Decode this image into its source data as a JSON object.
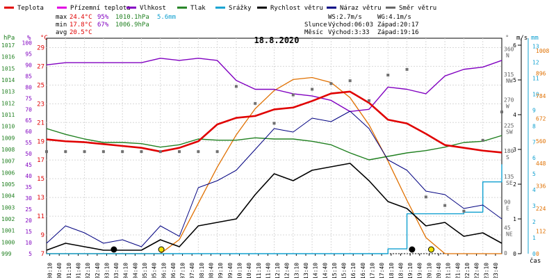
{
  "chart_data": {
    "type": "line",
    "title": "18.8.2020",
    "legend": [
      {
        "name": "Teplota",
        "color": "#e00000"
      },
      {
        "name": "Přízemní teplota",
        "color": "#e000e0"
      },
      {
        "name": "Vlhkost",
        "color": "#8000c0"
      },
      {
        "name": "Tlak",
        "color": "#208020"
      },
      {
        "name": "Srážky",
        "color": "#10a0d0"
      },
      {
        "name": "Rychlost větru",
        "color": "#000000"
      },
      {
        "name": "Náraz větru",
        "color": "#000080"
      },
      {
        "name": "Směr větru",
        "color": "#606060"
      }
    ],
    "stats": {
      "max_label": "max",
      "min_label": "min",
      "avg_label": "avg",
      "max_temp": "24.4°C",
      "max_hum": "95%",
      "max_press": "1010.1hPa",
      "max_rain": "5.6mm",
      "min_temp": "17.8°C",
      "min_hum": "67%",
      "min_press": "1006.9hPa",
      "avg_temp": "20.5°C",
      "ws": "WS:2.7m/s",
      "wg": "WG:4.1m/s",
      "sun_label": "Slunce",
      "sunrise": "Východ:06:03",
      "sunset": "Západ:20:17",
      "moon_label": "Měsíc",
      "moonrise": "Východ:3:33",
      "moonset": "Západ:19:16"
    },
    "axes": {
      "hpa_label": "hPa",
      "pct_label": "%",
      "degc_label": "°C",
      "deg_label": "°",
      "ms_label": "m/s",
      "mm_label": "mm",
      "x_label": "čas",
      "hpa_ticks": [
        1017,
        1016,
        1015,
        1014,
        1013,
        1012,
        1011,
        1010,
        1009,
        1008,
        1007,
        1006,
        1005,
        1004,
        1003,
        1002,
        1001,
        1000,
        999
      ],
      "pct_ticks": [
        100,
        95,
        90,
        85,
        80,
        75,
        70,
        65,
        60,
        55,
        50,
        45,
        40,
        35,
        30,
        25,
        20,
        15,
        10,
        5
      ],
      "c_ticks": [
        29,
        27,
        25,
        23,
        21,
        19,
        17,
        15,
        13,
        11,
        9,
        7
      ],
      "dir_ticks": [
        "360",
        "N",
        "315",
        "NW",
        "270",
        "W",
        "225",
        "SW",
        "180",
        "S",
        "135",
        "SE",
        "90",
        "E",
        "45",
        "NE",
        "0"
      ],
      "ms_ticks": [
        6,
        5,
        4,
        3,
        2,
        1,
        0
      ],
      "mm_ticks": [
        13,
        12,
        11,
        10,
        9,
        8,
        7,
        6,
        5,
        4,
        3,
        2,
        1,
        0
      ],
      "rad_ticks": [
        1008,
        896,
        784,
        672,
        560,
        448,
        336,
        224,
        112,
        0
      ],
      "x_ticks": [
        "00:10",
        "00:40",
        "01:10",
        "01:40",
        "02:10",
        "02:40",
        "03:10",
        "03:40",
        "04:10",
        "04:40",
        "05:10",
        "05:40",
        "06:10",
        "06:40",
        "07:10",
        "07:40",
        "08:10",
        "08:40",
        "09:10",
        "09:40",
        "10:10",
        "10:40",
        "11:10",
        "11:40",
        "12:10",
        "12:40",
        "13:10",
        "13:40",
        "14:10",
        "14:40",
        "15:10",
        "15:40",
        "16:10",
        "16:40",
        "17:10",
        "17:40",
        "18:10",
        "18:40",
        "19:10",
        "19:40",
        "20:10",
        "20:40",
        "21:10",
        "21:40",
        "22:10",
        "22:40",
        "23:10",
        "23:40"
      ]
    },
    "x_hours": [
      0,
      1,
      2,
      3,
      4,
      5,
      6,
      7,
      8,
      9,
      10,
      11,
      12,
      13,
      14,
      15,
      16,
      17,
      18,
      19,
      20,
      21,
      22,
      23,
      24
    ],
    "temperature_c": [
      19.2,
      19.0,
      18.9,
      18.7,
      18.5,
      18.3,
      17.9,
      18.3,
      19.0,
      20.8,
      21.5,
      21.7,
      22.4,
      22.6,
      23.3,
      24.1,
      24.3,
      23.1,
      21.3,
      20.9,
      19.8,
      18.6,
      18.3,
      18.0,
      17.8
    ],
    "humidity_pct": [
      90,
      91,
      91,
      91,
      91,
      91,
      93,
      92,
      93,
      92,
      83,
      79,
      79,
      77,
      76,
      74,
      69,
      70,
      80,
      79,
      77,
      85,
      88,
      89,
      92
    ],
    "pressure_hpa": [
      1009.8,
      1009.3,
      1008.9,
      1008.6,
      1008.6,
      1008.5,
      1008.2,
      1008.4,
      1008.9,
      1008.8,
      1008.8,
      1009.0,
      1008.9,
      1008.9,
      1008.7,
      1008.4,
      1007.7,
      1007.1,
      1007.4,
      1007.7,
      1007.9,
      1008.2,
      1008.6,
      1008.7,
      1009.2
    ],
    "rain_mm": [
      0,
      0,
      0,
      0,
      0,
      0,
      0,
      0,
      0,
      0,
      0,
      0,
      0,
      0,
      0,
      0,
      0,
      0,
      0.3,
      2.5,
      2.5,
      2.5,
      2.6,
      4.5,
      5.6
    ],
    "wind_speed_ms": [
      0.1,
      0.3,
      0.2,
      0.1,
      0.1,
      0.1,
      0.4,
      0.2,
      0.8,
      0.9,
      1.0,
      1.7,
      2.3,
      2.1,
      2.4,
      2.5,
      2.6,
      2.1,
      1.5,
      1.3,
      0.8,
      0.9,
      0.5,
      0.6,
      0.3
    ],
    "wind_gust_ms": [
      0.3,
      0.8,
      0.6,
      0.3,
      0.4,
      0.2,
      0.8,
      0.5,
      1.9,
      2.1,
      2.4,
      3.0,
      3.6,
      3.5,
      3.9,
      3.8,
      4.1,
      3.6,
      2.7,
      2.4,
      1.8,
      1.7,
      1.3,
      1.4,
      1.0
    ],
    "solar_wm2": [
      0,
      0,
      0,
      0,
      0,
      0,
      0,
      70,
      250,
      430,
      590,
      720,
      810,
      865,
      875,
      850,
      775,
      640,
      460,
      265,
      80,
      0,
      0,
      0,
      0
    ],
    "wind_dir_deg": [
      180,
      180,
      180,
      180,
      180,
      180,
      180,
      180,
      180,
      180,
      295,
      265,
      230,
      280,
      290,
      300,
      305,
      270,
      315,
      325,
      100,
      85,
      75,
      200,
      250
    ]
  }
}
